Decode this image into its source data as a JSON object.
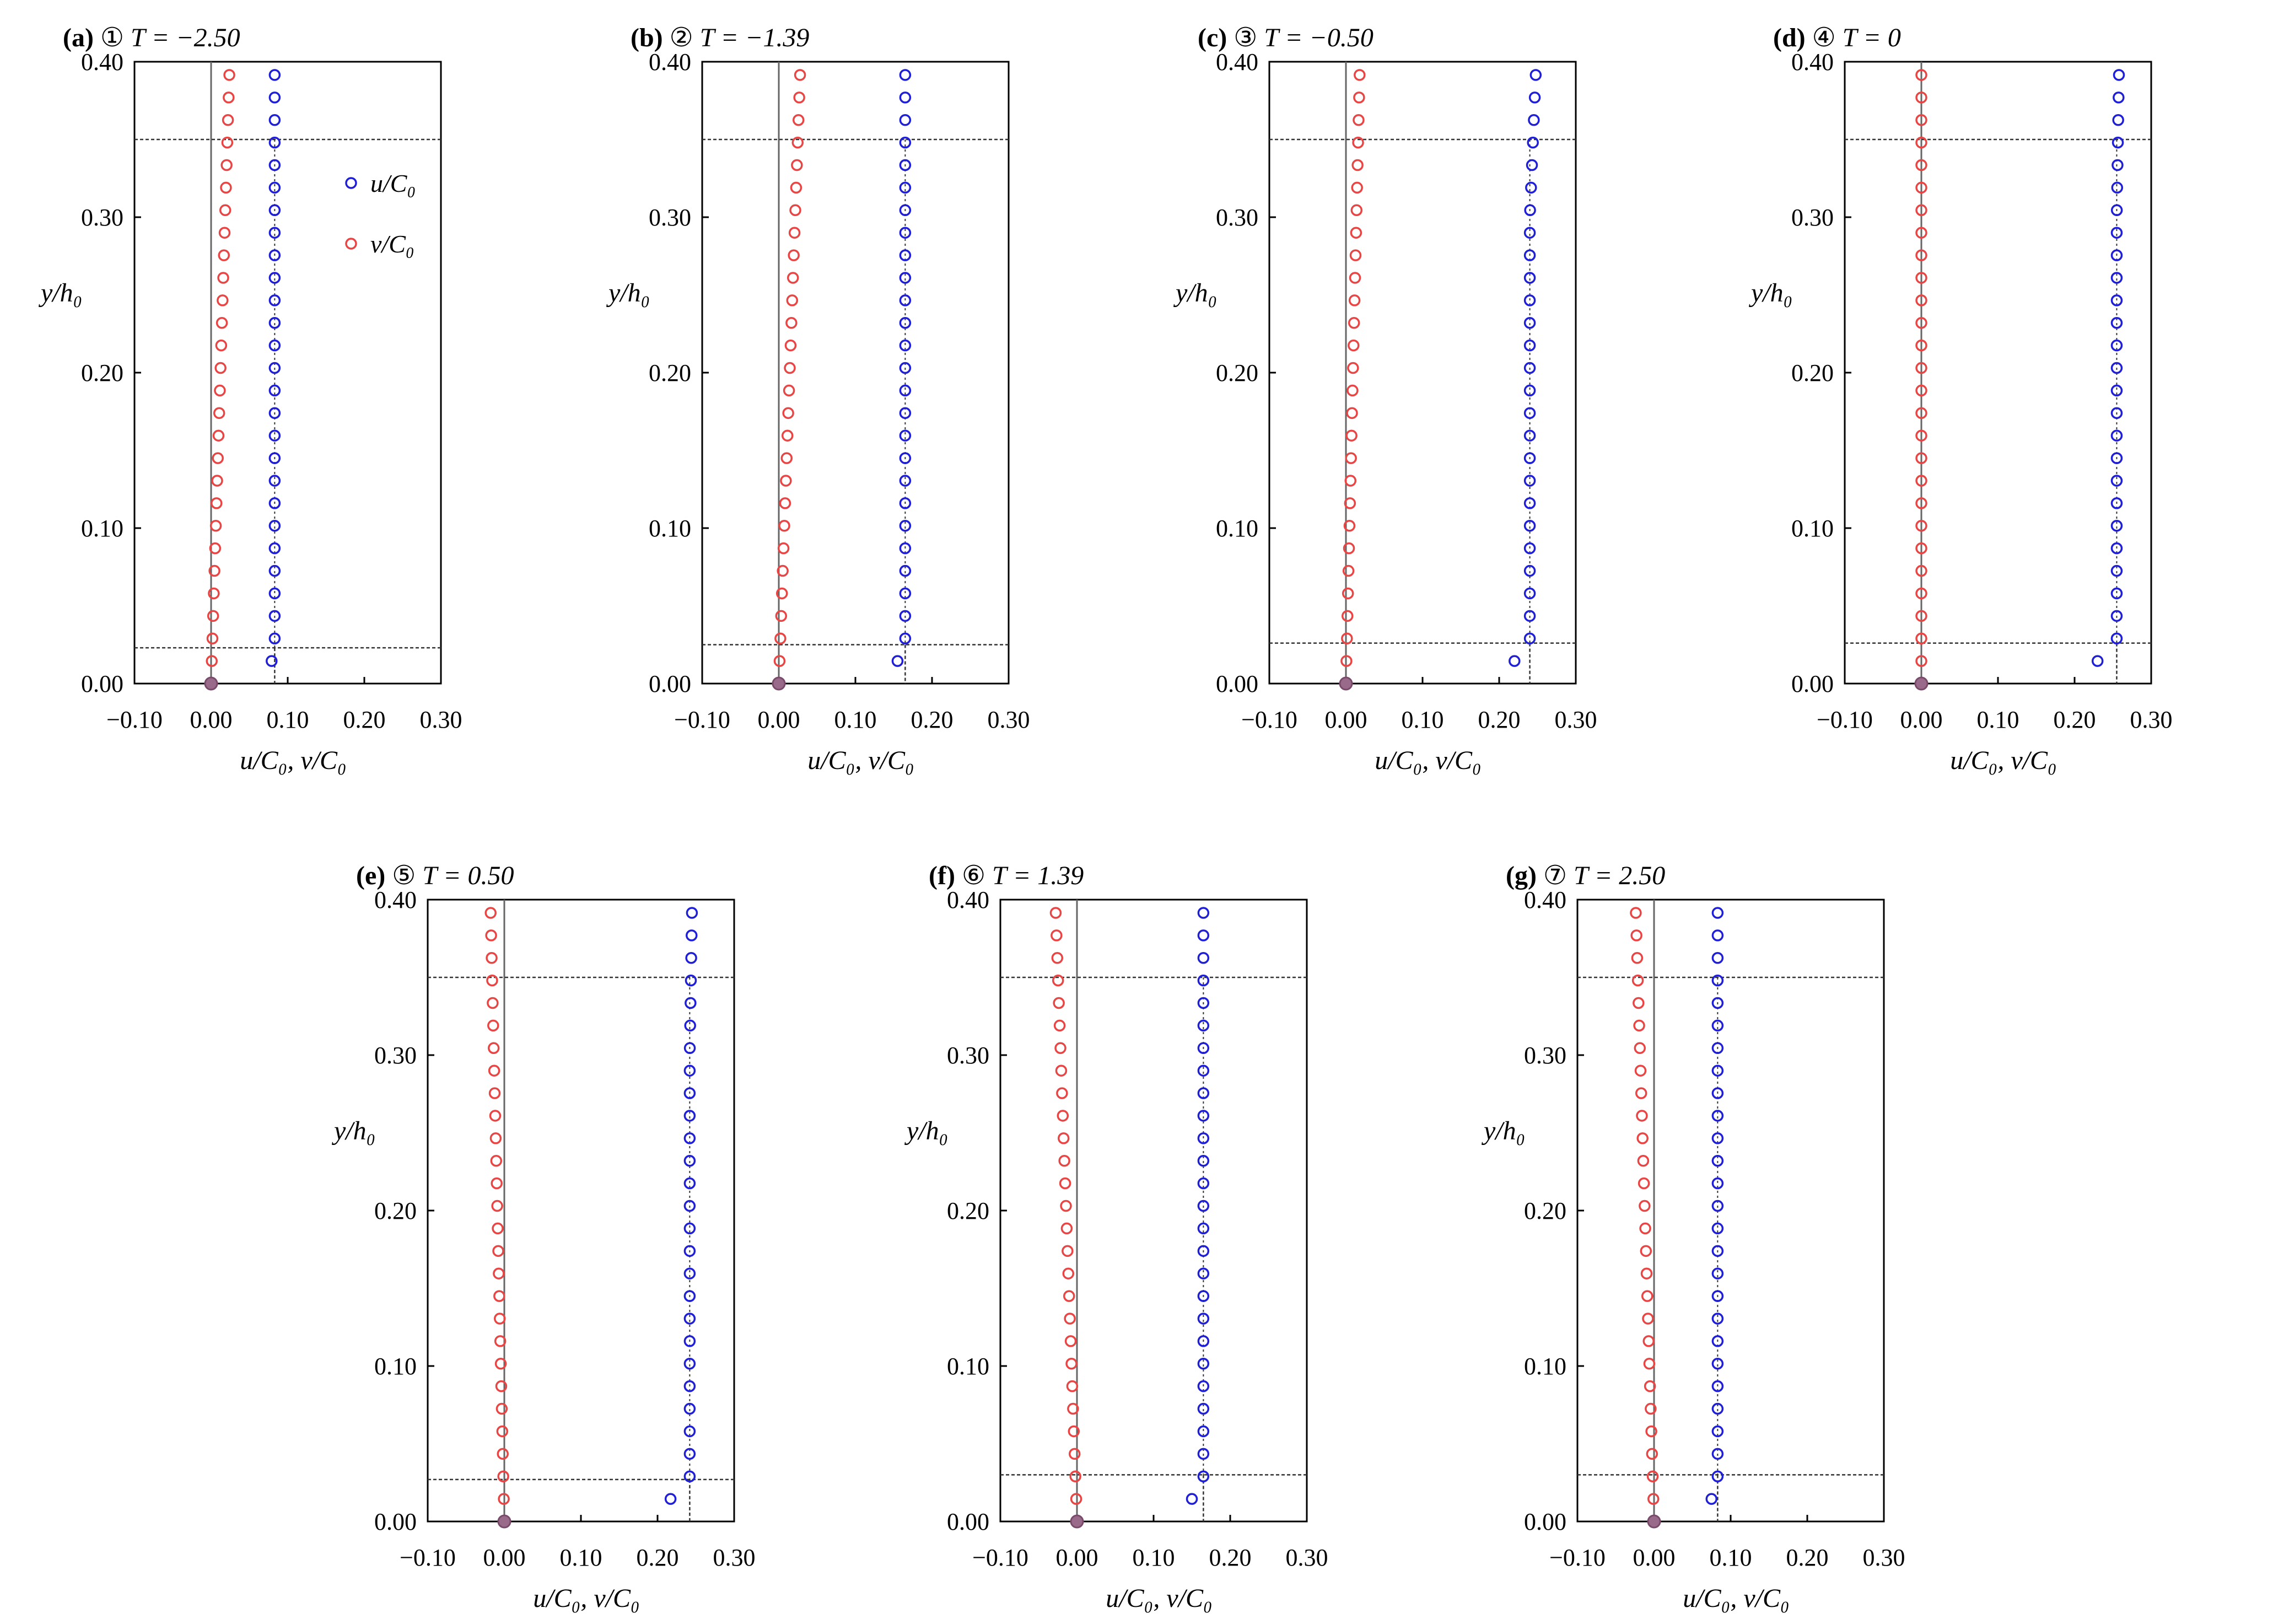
{
  "figure": {
    "xlabel": "u/C₀, v/C₀",
    "ylabel": "y/h₀",
    "x_ticks": [
      "−0.10",
      "0.00",
      "0.10",
      "0.20",
      "0.30"
    ],
    "y_ticks": [
      "0.00",
      "0.10",
      "0.20",
      "0.30",
      "0.40"
    ],
    "legend": [
      "u/C₀",
      "v/C₀"
    ],
    "colors": {
      "u": "#1f1fd6",
      "v": "#e84545",
      "frame": "#000000",
      "zero_line": "#666666",
      "ref_line": "#333333"
    }
  },
  "chart_data": [
    {
      "type": "scatter",
      "letter": "(a)",
      "circled": "①",
      "title": "T = −2.50",
      "xlim": [
        -0.1,
        0.3
      ],
      "ylim": [
        0.0,
        0.4
      ],
      "u_bottom": 0.079,
      "u_profile": 0.083,
      "v_top": 0.024,
      "ref_y_low": 0.023,
      "ref_y_high": 0.35,
      "legend_shown": true
    },
    {
      "type": "scatter",
      "letter": "(b)",
      "circled": "②",
      "title": "T = −1.39",
      "xlim": [
        -0.1,
        0.3
      ],
      "ylim": [
        0.0,
        0.4
      ],
      "u_bottom": 0.155,
      "u_profile": 0.165,
      "v_top": 0.028,
      "ref_y_low": 0.025,
      "ref_y_high": 0.35,
      "legend_shown": false
    },
    {
      "type": "scatter",
      "letter": "(c)",
      "circled": "③",
      "title": "T = −0.50",
      "xlim": [
        -0.1,
        0.3
      ],
      "ylim": [
        0.0,
        0.4
      ],
      "u_bottom": 0.22,
      "u_profile": 0.24,
      "u_top": 0.248,
      "v_top": 0.018,
      "ref_y_low": 0.026,
      "ref_y_high": 0.35,
      "legend_shown": false
    },
    {
      "type": "scatter",
      "letter": "(d)",
      "circled": "④",
      "title": "T = 0",
      "xlim": [
        -0.1,
        0.3
      ],
      "ylim": [
        0.0,
        0.4
      ],
      "u_bottom": 0.23,
      "u_profile": 0.255,
      "u_top": 0.258,
      "v_top": 0.0,
      "ref_y_low": 0.026,
      "ref_y_high": 0.35,
      "legend_shown": false
    },
    {
      "type": "scatter",
      "letter": "(e)",
      "circled": "⑤",
      "title": "T = 0.50",
      "xlim": [
        -0.1,
        0.3
      ],
      "ylim": [
        0.0,
        0.4
      ],
      "u_bottom": 0.217,
      "u_profile": 0.242,
      "u_top": 0.245,
      "v_top": -0.018,
      "ref_y_low": 0.027,
      "ref_y_high": 0.35,
      "legend_shown": false
    },
    {
      "type": "scatter",
      "letter": "(f)",
      "circled": "⑥",
      "title": "T = 1.39",
      "xlim": [
        -0.1,
        0.3
      ],
      "ylim": [
        0.0,
        0.4
      ],
      "u_bottom": 0.15,
      "u_profile": 0.165,
      "v_top": -0.028,
      "ref_y_low": 0.03,
      "ref_y_high": 0.35,
      "legend_shown": false
    },
    {
      "type": "scatter",
      "letter": "(g)",
      "circled": "⑦",
      "title": "T = 2.50",
      "xlim": [
        -0.1,
        0.3
      ],
      "ylim": [
        0.0,
        0.4
      ],
      "u_bottom": 0.075,
      "u_profile": 0.083,
      "v_top": -0.024,
      "ref_y_low": 0.03,
      "ref_y_high": 0.35,
      "legend_shown": false
    }
  ]
}
